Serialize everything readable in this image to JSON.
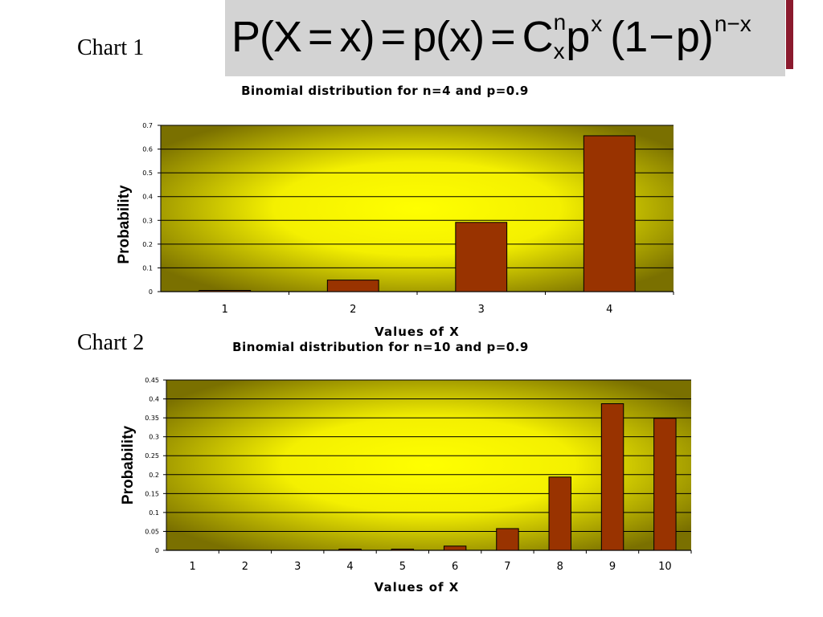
{
  "labels": {
    "chart1": "Chart 1",
    "chart2": "Chart 2"
  },
  "formula": {
    "p1": "P(X",
    "eq": "=",
    "x1": "x)",
    "p2": "p(x)",
    "c": "C",
    "c_sup": "n",
    "c_sub": "x",
    "p3": "p",
    "p3_sup": "x",
    "paren": "(1",
    "minus": "−",
    "p4": "p)",
    "p4_sup": "n−x"
  },
  "colors": {
    "bar": "#993300",
    "plot_edge": "#7a7000",
    "plot_center": "#ffff00",
    "accent": "#8b1a2e"
  },
  "chart_data": [
    {
      "type": "bar",
      "title": "Binomial distribution for n=4 and p=0.9",
      "xlabel": "Values of X",
      "ylabel": "Probability",
      "categories": [
        "1",
        "2",
        "3",
        "4"
      ],
      "values": [
        0.0036,
        0.0486,
        0.2916,
        0.6561
      ],
      "ylim": [
        0,
        0.7
      ],
      "yticks": [
        "0",
        "0.1",
        "0.2",
        "0.3",
        "0.4",
        "0.5",
        "0.6",
        "0.7"
      ],
      "grid": true,
      "legend": "none"
    },
    {
      "type": "bar",
      "title": "Binomial distribution for n=10 and p=0.9",
      "xlabel": "Values of X",
      "ylabel": "Probability",
      "categories": [
        "1",
        "2",
        "3",
        "4",
        "5",
        "6",
        "7",
        "8",
        "9",
        "10"
      ],
      "values": [
        0.0,
        0.0,
        0.0,
        0.0001,
        0.0015,
        0.0112,
        0.0574,
        0.1937,
        0.3874,
        0.3487
      ],
      "ylim": [
        0,
        0.45
      ],
      "yticks": [
        "0",
        "0.05",
        "0.1",
        "0.15",
        "0.2",
        "0.25",
        "0.3",
        "0.35",
        "0.4",
        "0.45"
      ],
      "grid": true,
      "legend": "none"
    }
  ]
}
